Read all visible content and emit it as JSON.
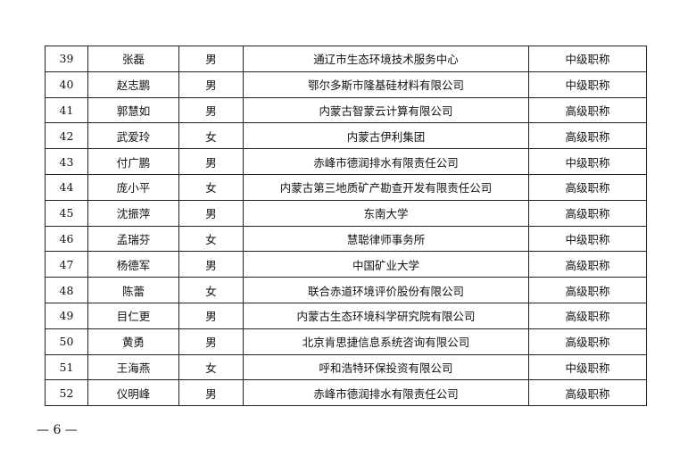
{
  "table": {
    "rows": [
      [
        "39",
        "张磊",
        "男",
        "通辽市生态环境技术服务中心",
        "中级职称"
      ],
      [
        "40",
        "赵志鹏",
        "男",
        "鄂尔多斯市隆基硅材料有限公司",
        "中级职称"
      ],
      [
        "41",
        "郭慧如",
        "男",
        "内蒙古智蒙云计算有限公司",
        "高级职称"
      ],
      [
        "42",
        "武爱玲",
        "女",
        "内蒙古伊利集团",
        "高级职称"
      ],
      [
        "43",
        "付广鹏",
        "男",
        "赤峰市德润排水有限责任公司",
        "中级职称"
      ],
      [
        "44",
        "庞小平",
        "女",
        "内蒙古第三地质矿产勘查开发有限责任公司",
        "高级职称"
      ],
      [
        "45",
        "沈振萍",
        "男",
        "东南大学",
        "高级职称"
      ],
      [
        "46",
        "孟瑞芬",
        "女",
        "慧聪律师事务所",
        "中级职称"
      ],
      [
        "47",
        "杨德军",
        "男",
        "中国矿业大学",
        "高级职称"
      ],
      [
        "48",
        "陈蕾",
        "女",
        "联合赤道环境评价股份有限公司",
        "高级职称"
      ],
      [
        "49",
        "目仁更",
        "男",
        "内蒙古生态环境科学研究院有限公司",
        "高级职称"
      ],
      [
        "50",
        "黄勇",
        "男",
        "北京肯思捷信息系统咨询有限公司",
        "高级职称"
      ],
      [
        "51",
        "王海燕",
        "女",
        "呼和浩特环保投资有限公司",
        "中级职称"
      ],
      [
        "52",
        "仪明峰",
        "男",
        "赤峰市德润排水有限责任公司",
        "高级职称"
      ]
    ]
  },
  "footer": {
    "page_number": "— 6 —"
  }
}
